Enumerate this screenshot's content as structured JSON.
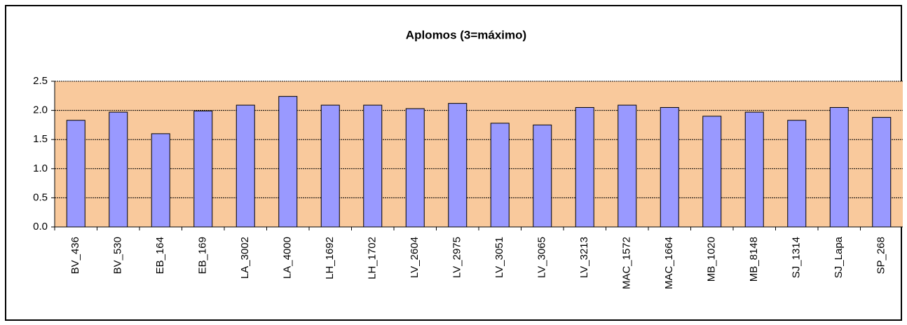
{
  "chart_data": {
    "type": "bar",
    "title": "Aplomos (3=máximo)",
    "categories": [
      "BV_436",
      "BV_530",
      "EB_164",
      "EB_169",
      "LA_3002",
      "LA_4000",
      "LH_1692",
      "LH_1702",
      "LV_2604",
      "LV_2975",
      "LV_3051",
      "LV_3065",
      "LV_3213",
      "MAC_1572",
      "MAC_1664",
      "MB_1020",
      "MB_8148",
      "SJ_1314",
      "SJ_Lapa",
      "SP_268"
    ],
    "values": [
      1.83,
      1.97,
      1.6,
      1.99,
      2.09,
      2.24,
      2.09,
      2.09,
      2.03,
      2.12,
      1.78,
      1.75,
      2.05,
      2.09,
      2.05,
      1.9,
      1.97,
      1.83,
      2.05,
      1.88
    ],
    "color": "#9999ff",
    "background": "#f9c99c",
    "ylim": [
      0,
      2.5
    ],
    "yticks": [
      {
        "value": 0,
        "label": "0.0"
      },
      0.5,
      {
        "value": 1,
        "label": "1.0"
      },
      1.5,
      {
        "value": 2,
        "label": "2.0"
      },
      2.5
    ],
    "grid": true
  }
}
